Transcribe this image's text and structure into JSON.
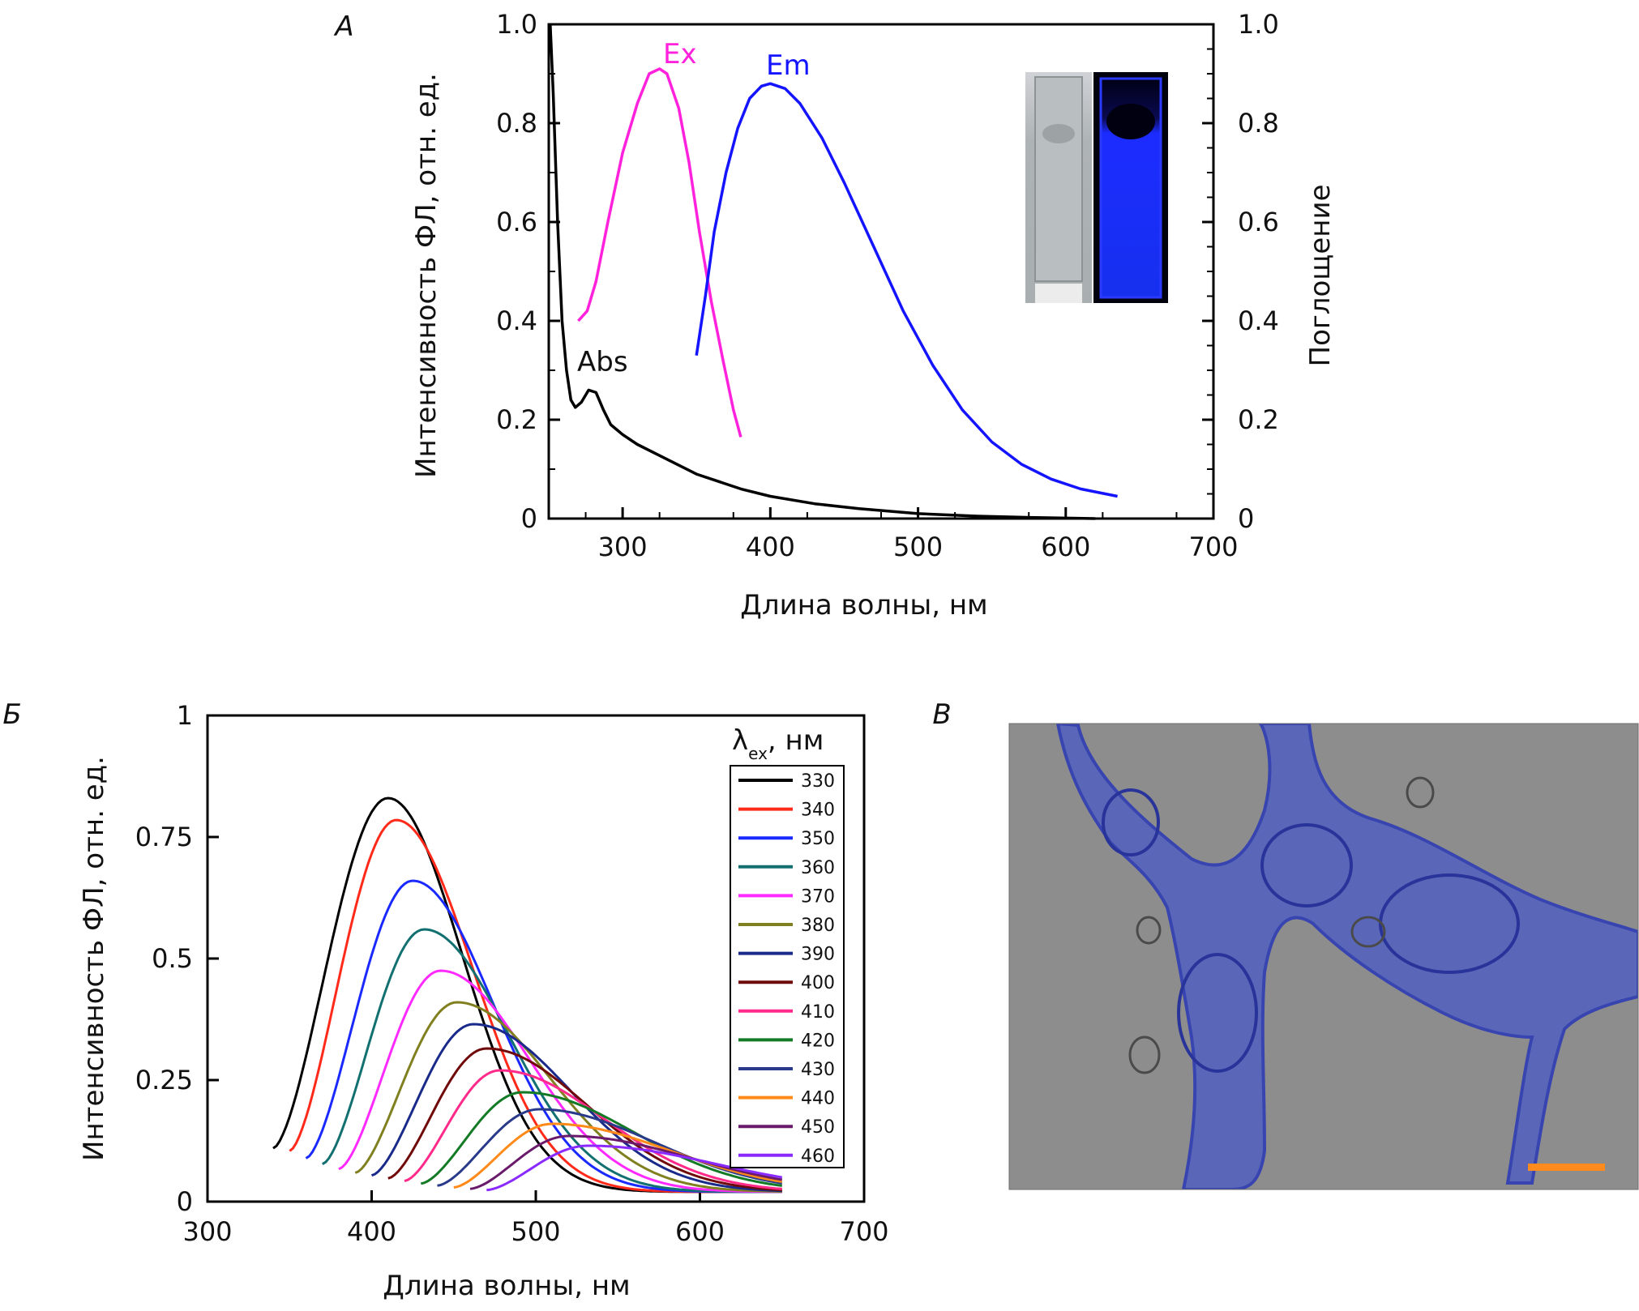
{
  "panels": {
    "a": {
      "letter": "А"
    },
    "b": {
      "letter": "Б"
    },
    "c": {
      "letter": "В"
    }
  },
  "colors": {
    "abs": "#000000",
    "ex": "#ff22dd",
    "em": "#1414ff",
    "scale_bar": "#ff8a1e",
    "micrograph_bg": "#8d8d8d",
    "cell_fill": "#5a6bd8"
  },
  "chart_data": [
    {
      "type": "line",
      "panel": "А",
      "xlabel": "Длина волны, нм",
      "ylabel": "Интенсивность ФЛ, отн. ед.",
      "ylabel_right": "Поглощение",
      "xlim": [
        250,
        700
      ],
      "ylim": [
        0,
        1.0
      ],
      "xticks": [
        "300",
        "400",
        "500",
        "600",
        "700"
      ],
      "yticks": [
        "0",
        "0.2",
        "0.4",
        "0.6",
        "0.8",
        "1.0"
      ],
      "yticks_right": [
        "0",
        "0.2",
        "0.4",
        "0.6",
        "0.8",
        "1.0"
      ],
      "inset": "cuvette photo: daylight (left) and UV light (right, blue emission)",
      "series": [
        {
          "name": "Abs",
          "color": "#000000",
          "x": [
            251,
            253,
            256,
            259,
            262,
            265,
            268,
            272,
            277,
            282,
            287,
            292,
            300,
            310,
            330,
            350,
            380,
            400,
            430,
            460,
            500,
            540,
            580,
            620
          ],
          "y": [
            1.0,
            0.86,
            0.6,
            0.4,
            0.3,
            0.24,
            0.225,
            0.235,
            0.26,
            0.255,
            0.22,
            0.19,
            0.17,
            0.15,
            0.12,
            0.09,
            0.06,
            0.045,
            0.03,
            0.02,
            0.01,
            0.005,
            0.002,
            0.0
          ]
        },
        {
          "name": "Ex",
          "color": "#ff22dd",
          "x": [
            270,
            276,
            282,
            290,
            300,
            310,
            318,
            325,
            330,
            338,
            345,
            352,
            360,
            368,
            375,
            380
          ],
          "y": [
            0.4,
            0.42,
            0.48,
            0.6,
            0.74,
            0.84,
            0.9,
            0.91,
            0.9,
            0.83,
            0.72,
            0.58,
            0.44,
            0.32,
            0.22,
            0.165
          ]
        },
        {
          "name": "Em",
          "color": "#1414ff",
          "x": [
            350,
            356,
            362,
            370,
            378,
            386,
            394,
            400,
            410,
            420,
            435,
            450,
            470,
            490,
            510,
            530,
            550,
            570,
            590,
            610,
            635
          ],
          "y": [
            0.33,
            0.45,
            0.58,
            0.7,
            0.79,
            0.85,
            0.875,
            0.88,
            0.87,
            0.84,
            0.77,
            0.68,
            0.55,
            0.42,
            0.31,
            0.22,
            0.155,
            0.11,
            0.08,
            0.06,
            0.045
          ]
        }
      ]
    },
    {
      "type": "line",
      "panel": "Б",
      "xlabel": "Длина волны, нм",
      "ylabel": "Интенсивность ФЛ, отн. ед.",
      "xlim": [
        300,
        700
      ],
      "ylim": [
        0,
        1
      ],
      "xticks": [
        "300",
        "400",
        "500",
        "600",
        "700"
      ],
      "yticks": [
        "0",
        "0.25",
        "0.5",
        "0.75",
        "1"
      ],
      "legend_title": "λex, нм",
      "legend_title_main": "λ",
      "legend_title_sub": "ex",
      "legend_title_rest": ", нм",
      "legend_position": "top-right",
      "series": [
        {
          "name": "330",
          "start": 340,
          "peak_x": 410,
          "peak_y": 0.83,
          "color": "#000000"
        },
        {
          "name": "340",
          "start": 350,
          "peak_x": 415,
          "peak_y": 0.785,
          "color": "#ff2a1a"
        },
        {
          "name": "350",
          "start": 360,
          "peak_x": 425,
          "peak_y": 0.66,
          "color": "#1a2aff"
        },
        {
          "name": "360",
          "start": 370,
          "peak_x": 432,
          "peak_y": 0.56,
          "color": "#137070"
        },
        {
          "name": "370",
          "start": 380,
          "peak_x": 442,
          "peak_y": 0.475,
          "color": "#ff2aff"
        },
        {
          "name": "380",
          "start": 390,
          "peak_x": 452,
          "peak_y": 0.41,
          "color": "#808020"
        },
        {
          "name": "390",
          "start": 400,
          "peak_x": 462,
          "peak_y": 0.365,
          "color": "#1a2a8a"
        },
        {
          "name": "400",
          "start": 410,
          "peak_x": 470,
          "peak_y": 0.315,
          "color": "#700a0a"
        },
        {
          "name": "410",
          "start": 420,
          "peak_x": 478,
          "peak_y": 0.27,
          "color": "#ff2a8a"
        },
        {
          "name": "420",
          "start": 430,
          "peak_x": 492,
          "peak_y": 0.225,
          "color": "#137a25"
        },
        {
          "name": "430",
          "start": 440,
          "peak_x": 502,
          "peak_y": 0.19,
          "color": "#2a3a8a"
        },
        {
          "name": "440",
          "start": 450,
          "peak_x": 510,
          "peak_y": 0.16,
          "color": "#ff8a1a"
        },
        {
          "name": "450",
          "start": 460,
          "peak_x": 520,
          "peak_y": 0.135,
          "color": "#6a1a6a"
        },
        {
          "name": "460",
          "start": 470,
          "peak_x": 532,
          "peak_y": 0.115,
          "color": "#8a2aff"
        }
      ]
    }
  ]
}
